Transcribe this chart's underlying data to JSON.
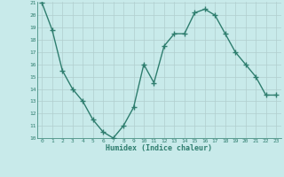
{
  "x": [
    0,
    1,
    2,
    3,
    4,
    5,
    6,
    7,
    8,
    9,
    10,
    11,
    12,
    13,
    14,
    15,
    16,
    17,
    18,
    19,
    20,
    21,
    22,
    23
  ],
  "y": [
    21.0,
    18.8,
    15.5,
    14.0,
    13.0,
    11.5,
    10.5,
    10.0,
    11.0,
    12.5,
    16.0,
    14.5,
    17.5,
    18.5,
    18.5,
    20.2,
    20.5,
    20.0,
    18.5,
    17.0,
    16.0,
    15.0,
    13.5,
    13.5
  ],
  "xlabel": "Humidex (Indice chaleur)",
  "ylim": [
    10,
    21
  ],
  "xlim": [
    -0.5,
    23.5
  ],
  "yticks": [
    10,
    11,
    12,
    13,
    14,
    15,
    16,
    17,
    18,
    19,
    20,
    21
  ],
  "xticks": [
    0,
    1,
    2,
    3,
    4,
    5,
    6,
    7,
    8,
    9,
    10,
    11,
    12,
    13,
    14,
    15,
    16,
    17,
    18,
    19,
    20,
    21,
    22,
    23
  ],
  "line_color": "#2e7d6e",
  "marker": "+",
  "bg_color": "#c8eaea",
  "grid_color": "#b0cece",
  "label_color": "#2e7d6e",
  "spine_color": "#2e7d6e"
}
